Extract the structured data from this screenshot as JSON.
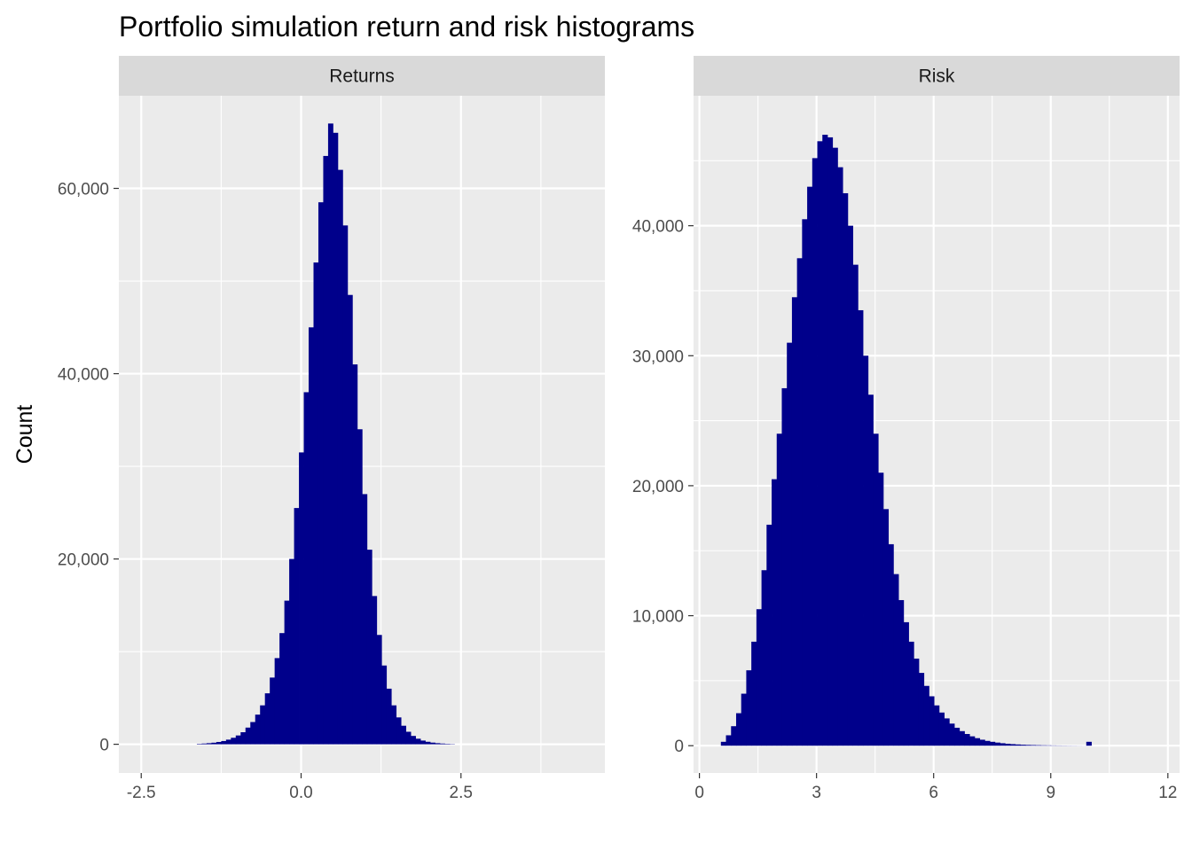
{
  "chart_data": {
    "title": "Portfolio simulation return and risk histograms",
    "ylabel": "Count",
    "bar_color": "#00008B",
    "panel_background": "#EBEBEB",
    "strip_background": "#D9D9D9",
    "grid_color": "#FFFFFF",
    "facets": [
      {
        "type": "bar",
        "strip": "Returns",
        "xlim": [
          -2.85,
          4.75
        ],
        "ylim": [
          -3100,
          70000
        ],
        "x_ticks": [
          -2.5,
          0,
          2.5
        ],
        "x_tick_labels": [
          "-2.5",
          "0.0",
          "2.5"
        ],
        "y_ticks": [
          0,
          20000,
          40000,
          60000
        ],
        "y_tick_labels": [
          "0",
          "20,000",
          "40,000",
          "60,000"
        ],
        "bin_start": -1.63,
        "bin_width": 0.076,
        "counts": [
          50,
          80,
          120,
          170,
          250,
          350,
          500,
          700,
          950,
          1300,
          1800,
          2400,
          3200,
          4200,
          5500,
          7200,
          9300,
          12000,
          15500,
          20000,
          25500,
          31500,
          38000,
          45000,
          52000,
          58500,
          63500,
          67000,
          66000,
          62000,
          56000,
          48500,
          41000,
          34000,
          27000,
          21000,
          16000,
          11800,
          8500,
          6000,
          4200,
          2900,
          2000,
          1350,
          900,
          600,
          400,
          270,
          180,
          120,
          80,
          50,
          30
        ]
      },
      {
        "type": "bar",
        "strip": "Risk",
        "xlim": [
          -0.15,
          12.3
        ],
        "ylim": [
          -2100,
          50000
        ],
        "x_ticks": [
          0,
          3,
          6,
          9,
          12
        ],
        "x_tick_labels": [
          "0",
          "3",
          "6",
          "9",
          "12"
        ],
        "y_ticks": [
          0,
          10000,
          20000,
          30000,
          40000
        ],
        "y_tick_labels": [
          "0",
          "10,000",
          "20,000",
          "30,000",
          "40,000"
        ],
        "bin_start": 0.55,
        "bin_width": 0.13,
        "counts": [
          300,
          800,
          1500,
          2500,
          4000,
          5800,
          8000,
          10500,
          13500,
          17000,
          20500,
          24000,
          27500,
          31000,
          34500,
          37500,
          40500,
          43000,
          45200,
          46500,
          47000,
          46800,
          46000,
          44500,
          42500,
          40000,
          37000,
          33500,
          30000,
          27000,
          24000,
          21000,
          18200,
          15500,
          13200,
          11200,
          9500,
          8000,
          6700,
          5600,
          4600,
          3800,
          3100,
          2550,
          2100,
          1700,
          1380,
          1120,
          900,
          720,
          580,
          460,
          370,
          300,
          240,
          190,
          150,
          120,
          95,
          75,
          60,
          50,
          40,
          32,
          26,
          20,
          16,
          13,
          10,
          8,
          6,
          5,
          300
        ]
      }
    ]
  }
}
